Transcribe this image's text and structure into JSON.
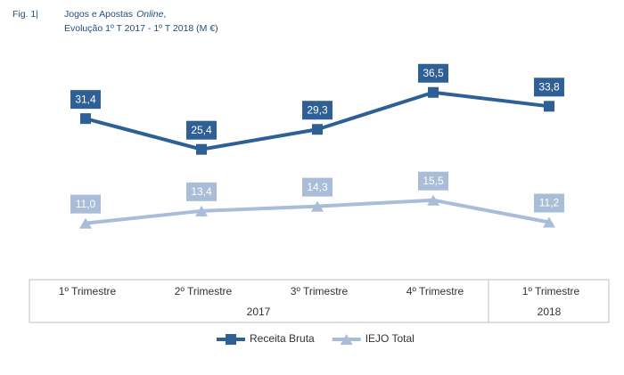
{
  "chart_data": {
    "type": "line",
    "fig_label": "Fig. 1|",
    "title_parts": [
      "Jogos e Apostas",
      "Online",
      ","
    ],
    "subtitle": "Evolução 1º T 2017 - 1º T 2018 (M €)",
    "categories": [
      "1º Trimestre",
      "2º Trimestre",
      "3º Trimestre",
      "4º Trimestre",
      "1º Trimestre"
    ],
    "groups": [
      "2017",
      "2018"
    ],
    "series": [
      {
        "name": "Receita Bruta",
        "color": "#2e5f95",
        "marker": "square",
        "values": [
          31.4,
          25.4,
          29.3,
          36.5,
          33.8
        ],
        "value_labels": [
          "31,4",
          "25,4",
          "29,3",
          "36,5",
          "33,8"
        ]
      },
      {
        "name": "IEJO Total",
        "color": "#a9bcd8",
        "marker": "triangle",
        "values": [
          11.0,
          13.4,
          14.3,
          15.5,
          11.2
        ],
        "value_labels": [
          "11,0",
          "13,4",
          "14,3",
          "15,5",
          "11,2"
        ]
      }
    ]
  }
}
